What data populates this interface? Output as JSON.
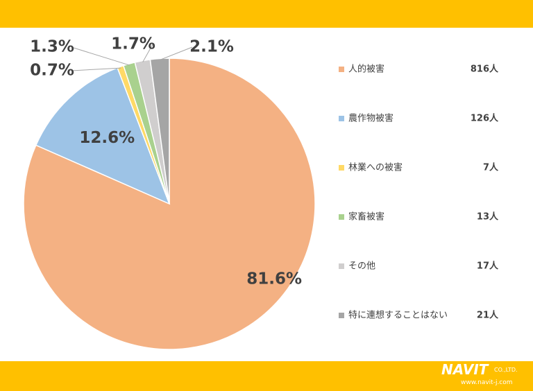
{
  "chart_data": {
    "type": "pie",
    "categories": [
      "人的被害",
      "農作物被害",
      "林業への被害",
      "家畜被害",
      "その他",
      "特に連想することはない"
    ],
    "values": [
      81.6,
      12.6,
      0.7,
      1.3,
      1.7,
      2.1
    ],
    "value_labels": [
      "81.6%",
      "12.6%",
      "0.7%",
      "1.3%",
      "1.7%",
      "2.1%"
    ],
    "counts": [
      816,
      126,
      7,
      13,
      17,
      21
    ],
    "count_labels": [
      "816人",
      "126人",
      "7人",
      "13人",
      "17人",
      "21人"
    ],
    "colors": [
      "#f4b183",
      "#9dc3e6",
      "#ffd966",
      "#a9d18e",
      "#d0cece",
      "#a5a5a5"
    ],
    "legend": "right"
  },
  "footer": {
    "logo": "NAVIT",
    "company": "CO.,LTD.",
    "url": "www.navit-j.com"
  }
}
